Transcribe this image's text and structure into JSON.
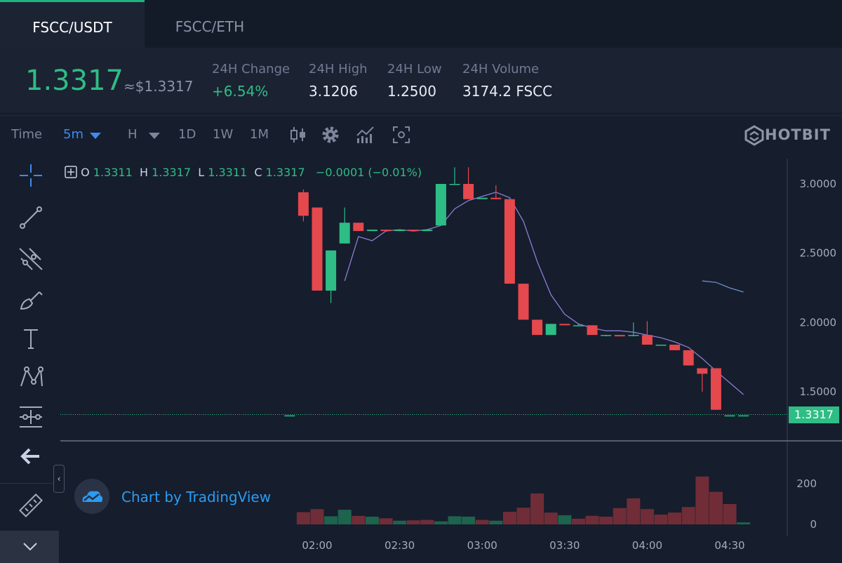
{
  "tabs": [
    {
      "label": "FSCC/USDT",
      "active": true
    },
    {
      "label": "FSCC/ETH",
      "active": false
    }
  ],
  "ticker": {
    "price": "1.3317",
    "usd": "≈$1.3317",
    "stats": [
      {
        "label": "24H Change",
        "value": "+6.54%"
      },
      {
        "label": "24H High",
        "value": "3.1206"
      },
      {
        "label": "24H Low",
        "value": "1.2500"
      },
      {
        "label": "24H Volume",
        "value": "3174.2 FSCC"
      }
    ]
  },
  "toolbar": {
    "time_label": "Time",
    "interval": "5m",
    "h_label": "H",
    "intervals": [
      "1D",
      "1W",
      "1M"
    ],
    "icons": [
      "candlestick-icon",
      "gear-icon",
      "indicators-icon",
      "screenshot-icon"
    ],
    "brand": "HOTBIT"
  },
  "sidebar": {
    "tools": [
      "crosshair-icon",
      "trend-line-icon",
      "pitchfork-icon",
      "brush-icon",
      "text-icon",
      "pattern-icon",
      "measure-icon",
      "arrow-left-icon",
      "ruler-icon",
      "chevron-down-icon"
    ]
  },
  "legend": {
    "o_label": "O",
    "o": "1.3311",
    "h_label": "H",
    "h": "1.3317",
    "l_label": "L",
    "l": "1.3311",
    "c_label": "C",
    "c": "1.3317",
    "change": "−0.0001 (−0.01%)"
  },
  "attribution": "Chart by TradingView",
  "colors": {
    "up": "#2ebd85",
    "down": "#e5484d",
    "accent": "#3d8cf0"
  },
  "chart_data": {
    "type": "candlestick",
    "price_ticks": [
      "3.0000",
      "2.5000",
      "2.0000",
      "1.5000"
    ],
    "volume_ticks": [
      "200",
      "0"
    ],
    "time_ticks": [
      "02:00",
      "02:30",
      "03:00",
      "03:30",
      "04:00",
      "04:30"
    ],
    "last_price": "1.3317",
    "candles": [
      {
        "t": "01:50",
        "o": 1.33,
        "h": 1.33,
        "l": 1.33,
        "c": 1.33
      },
      {
        "t": "01:55",
        "o": 2.94,
        "h": 2.96,
        "l": 2.73,
        "c": 2.77
      },
      {
        "t": "02:00",
        "o": 2.83,
        "h": 2.83,
        "l": 2.23,
        "c": 2.23
      },
      {
        "t": "02:05",
        "o": 2.23,
        "h": 2.52,
        "l": 2.14,
        "c": 2.52
      },
      {
        "t": "02:10",
        "o": 2.57,
        "h": 2.83,
        "l": 2.57,
        "c": 2.72
      },
      {
        "t": "02:15",
        "o": 2.72,
        "h": 2.72,
        "l": 2.66,
        "c": 2.66
      },
      {
        "t": "02:20",
        "o": 2.66,
        "h": 2.67,
        "l": 2.66,
        "c": 2.67
      },
      {
        "t": "02:25",
        "o": 2.67,
        "h": 2.67,
        "l": 2.66,
        "c": 2.66
      },
      {
        "t": "02:30",
        "o": 2.66,
        "h": 2.67,
        "l": 2.66,
        "c": 2.67
      },
      {
        "t": "02:35",
        "o": 2.67,
        "h": 2.67,
        "l": 2.66,
        "c": 2.66
      },
      {
        "t": "02:40",
        "o": 2.66,
        "h": 2.67,
        "l": 2.66,
        "c": 2.67
      },
      {
        "t": "02:45",
        "o": 2.7,
        "h": 3.0,
        "l": 2.7,
        "c": 3.0
      },
      {
        "t": "02:50",
        "o": 3.0,
        "h": 3.12,
        "l": 3.0,
        "c": 3.0
      },
      {
        "t": "02:55",
        "o": 3.0,
        "h": 3.12,
        "l": 2.89,
        "c": 2.89
      },
      {
        "t": "03:00",
        "o": 2.89,
        "h": 2.9,
        "l": 2.89,
        "c": 2.9
      },
      {
        "t": "03:05",
        "o": 2.9,
        "h": 2.99,
        "l": 2.89,
        "c": 2.89
      },
      {
        "t": "03:10",
        "o": 2.89,
        "h": 2.89,
        "l": 2.28,
        "c": 2.28
      },
      {
        "t": "03:15",
        "o": 2.28,
        "h": 2.28,
        "l": 2.02,
        "c": 2.02
      },
      {
        "t": "03:20",
        "o": 2.02,
        "h": 2.02,
        "l": 1.91,
        "c": 1.91
      },
      {
        "t": "03:25",
        "o": 1.91,
        "h": 1.99,
        "l": 1.91,
        "c": 1.99
      },
      {
        "t": "03:30",
        "o": 1.99,
        "h": 1.99,
        "l": 1.98,
        "c": 1.98
      },
      {
        "t": "03:35",
        "o": 1.98,
        "h": 1.99,
        "l": 1.98,
        "c": 1.98
      },
      {
        "t": "03:40",
        "o": 1.98,
        "h": 1.98,
        "l": 1.91,
        "c": 1.91
      },
      {
        "t": "03:45",
        "o": 1.91,
        "h": 1.91,
        "l": 1.9,
        "c": 1.91
      },
      {
        "t": "03:50",
        "o": 1.91,
        "h": 1.91,
        "l": 1.9,
        "c": 1.9
      },
      {
        "t": "03:55",
        "o": 1.91,
        "h": 2.0,
        "l": 1.9,
        "c": 1.91
      },
      {
        "t": "04:00",
        "o": 1.91,
        "h": 2.01,
        "l": 1.84,
        "c": 1.84
      },
      {
        "t": "04:05",
        "o": 1.84,
        "h": 1.84,
        "l": 1.84,
        "c": 1.84
      },
      {
        "t": "04:10",
        "o": 1.84,
        "h": 1.84,
        "l": 1.8,
        "c": 1.8
      },
      {
        "t": "04:15",
        "o": 1.8,
        "h": 1.8,
        "l": 1.69,
        "c": 1.69
      },
      {
        "t": "04:20",
        "o": 1.67,
        "h": 1.67,
        "l": 1.5,
        "c": 1.63
      },
      {
        "t": "04:25",
        "o": 1.67,
        "h": 1.67,
        "l": 1.37,
        "c": 1.37
      },
      {
        "t": "04:30",
        "o": 1.33,
        "h": 1.33,
        "l": 1.33,
        "c": 1.33
      },
      {
        "t": "04:35",
        "o": 1.33,
        "h": 1.33,
        "l": 1.33,
        "c": 1.33
      }
    ],
    "ma_segments": [
      [
        [
          "02:10",
          2.3
        ],
        [
          "02:15",
          2.62
        ],
        [
          "02:20",
          2.59
        ],
        [
          "02:25",
          2.66
        ],
        [
          "02:30",
          2.67
        ],
        [
          "02:35",
          2.66
        ],
        [
          "02:40",
          2.67
        ],
        [
          "02:45",
          2.7
        ],
        [
          "02:50",
          2.82
        ],
        [
          "02:55",
          2.88
        ],
        [
          "03:00",
          2.91
        ],
        [
          "03:05",
          2.94
        ],
        [
          "03:10",
          2.9
        ],
        [
          "03:15",
          2.73
        ],
        [
          "03:20",
          2.44
        ],
        [
          "03:25",
          2.2
        ],
        [
          "03:30",
          2.06
        ],
        [
          "03:35",
          1.99
        ],
        [
          "03:40",
          1.96
        ],
        [
          "03:45",
          1.94
        ],
        [
          "03:50",
          1.94
        ],
        [
          "03:55",
          1.93
        ],
        [
          "04:00",
          1.91
        ],
        [
          "04:05",
          1.89
        ],
        [
          "04:10",
          1.86
        ],
        [
          "04:15",
          1.82
        ],
        [
          "04:20",
          1.74
        ],
        [
          "04:25",
          1.65
        ],
        [
          "04:35",
          1.48
        ]
      ],
      [
        [
          "04:20",
          2.3
        ],
        [
          "04:25",
          2.29
        ],
        [
          "04:30",
          2.25
        ],
        [
          "04:35",
          2.22
        ]
      ]
    ],
    "volumes": [
      {
        "t": "01:55",
        "v": 60,
        "dir": "down"
      },
      {
        "t": "02:00",
        "v": 75,
        "dir": "down"
      },
      {
        "t": "02:05",
        "v": 40,
        "dir": "up"
      },
      {
        "t": "02:10",
        "v": 72,
        "dir": "up"
      },
      {
        "t": "02:15",
        "v": 42,
        "dir": "down"
      },
      {
        "t": "02:20",
        "v": 38,
        "dir": "up"
      },
      {
        "t": "02:25",
        "v": 30,
        "dir": "down"
      },
      {
        "t": "02:30",
        "v": 18,
        "dir": "up"
      },
      {
        "t": "02:35",
        "v": 20,
        "dir": "down"
      },
      {
        "t": "02:40",
        "v": 22,
        "dir": "down"
      },
      {
        "t": "02:45",
        "v": 15,
        "dir": "up"
      },
      {
        "t": "02:50",
        "v": 40,
        "dir": "up"
      },
      {
        "t": "02:55",
        "v": 38,
        "dir": "up"
      },
      {
        "t": "03:00",
        "v": 22,
        "dir": "down"
      },
      {
        "t": "03:05",
        "v": 18,
        "dir": "up"
      },
      {
        "t": "03:10",
        "v": 62,
        "dir": "down"
      },
      {
        "t": "03:15",
        "v": 82,
        "dir": "down"
      },
      {
        "t": "03:20",
        "v": 152,
        "dir": "down"
      },
      {
        "t": "03:25",
        "v": 58,
        "dir": "down"
      },
      {
        "t": "03:30",
        "v": 45,
        "dir": "up"
      },
      {
        "t": "03:35",
        "v": 28,
        "dir": "down"
      },
      {
        "t": "03:40",
        "v": 42,
        "dir": "down"
      },
      {
        "t": "03:45",
        "v": 38,
        "dir": "down"
      },
      {
        "t": "03:50",
        "v": 80,
        "dir": "down"
      },
      {
        "t": "03:55",
        "v": 128,
        "dir": "down"
      },
      {
        "t": "04:00",
        "v": 75,
        "dir": "down"
      },
      {
        "t": "04:05",
        "v": 48,
        "dir": "down"
      },
      {
        "t": "04:10",
        "v": 58,
        "dir": "down"
      },
      {
        "t": "04:15",
        "v": 85,
        "dir": "down"
      },
      {
        "t": "04:20",
        "v": 235,
        "dir": "down"
      },
      {
        "t": "04:25",
        "v": 160,
        "dir": "down"
      },
      {
        "t": "04:30",
        "v": 100,
        "dir": "down"
      },
      {
        "t": "04:35",
        "v": 10,
        "dir": "up"
      }
    ]
  }
}
